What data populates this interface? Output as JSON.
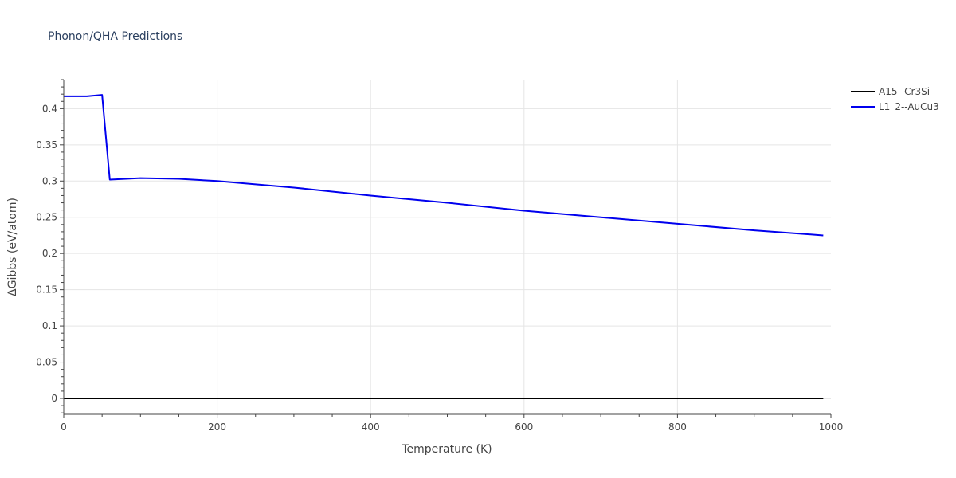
{
  "chart_data": {
    "type": "line",
    "title": "Phonon/QHA Predictions",
    "xlabel": "Temperature (K)",
    "ylabel": "ΔGibbs (eV/atom)",
    "xlim": [
      0,
      1000
    ],
    "ylim": [
      -0.022,
      0.44
    ],
    "x_ticks": [
      0,
      200,
      400,
      600,
      800,
      1000
    ],
    "x_tick_labels": [
      "0",
      "200",
      "400",
      "600",
      "800",
      "1000"
    ],
    "y_ticks": [
      0,
      0.05,
      0.1,
      0.15,
      0.2,
      0.25,
      0.3,
      0.35,
      0.4
    ],
    "y_tick_labels": [
      "0",
      "0.05",
      "0.1",
      "0.15",
      "0.2",
      "0.25",
      "0.3",
      "0.35",
      "0.4"
    ],
    "grid": true,
    "legend_position": "top-right",
    "series": [
      {
        "name": "A15--Cr3Si",
        "color": "#000000",
        "x": [
          0,
          990
        ],
        "y": [
          0,
          0
        ]
      },
      {
        "name": "L1_2--AuCu3",
        "color": "#0000ee",
        "x": [
          0,
          10,
          30,
          40,
          50,
          60,
          100,
          150,
          200,
          300,
          400,
          500,
          600,
          700,
          800,
          900,
          990
        ],
        "y": [
          0.417,
          0.417,
          0.417,
          0.418,
          0.419,
          0.302,
          0.304,
          0.303,
          0.3,
          0.291,
          0.28,
          0.27,
          0.259,
          0.25,
          0.241,
          0.232,
          0.225
        ]
      }
    ]
  }
}
